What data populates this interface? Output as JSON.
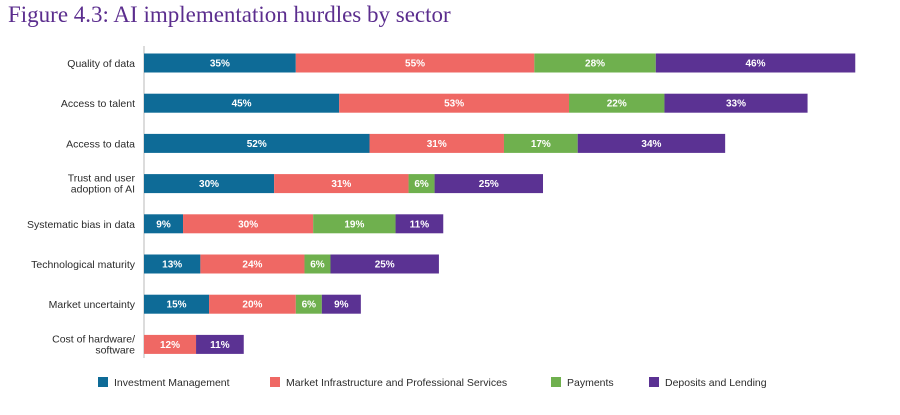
{
  "title": "Figure 4.3: AI implementation hurdles by sector",
  "colors": {
    "investment_management": "#0e6b97",
    "market_infrastructure": "#ef6864",
    "payments": "#6fb04e",
    "deposits_lending": "#5b3293",
    "axis": "#b9b9b9"
  },
  "chart_data": {
    "type": "bar",
    "orientation": "horizontal",
    "stacked": true,
    "title": "Figure 4.3: AI implementation hurdles by sector",
    "categories": [
      [
        "Quality of data"
      ],
      [
        "Access to talent"
      ],
      [
        "Access to data"
      ],
      [
        "Trust and user",
        "adoption of AI"
      ],
      [
        "Systematic bias in data"
      ],
      [
        "Technological maturity"
      ],
      [
        "Market uncertainty"
      ],
      [
        "Cost of hardware/",
        "software"
      ]
    ],
    "series": [
      {
        "name": "Investment Management",
        "color": "#0e6b97",
        "values": [
          35,
          45,
          52,
          30,
          9,
          13,
          15,
          null
        ]
      },
      {
        "name": "Market Infrastructure and Professional Services",
        "color": "#ef6864",
        "values": [
          55,
          53,
          31,
          31,
          30,
          24,
          20,
          12
        ]
      },
      {
        "name": "Payments",
        "color": "#6fb04e",
        "values": [
          28,
          22,
          17,
          6,
          19,
          6,
          6,
          null
        ]
      },
      {
        "name": "Deposits and Lending",
        "color": "#5b3293",
        "values": [
          46,
          33,
          34,
          25,
          11,
          25,
          9,
          11
        ]
      }
    ],
    "value_suffix": "%",
    "grid": false,
    "legend_position": "bottom"
  }
}
